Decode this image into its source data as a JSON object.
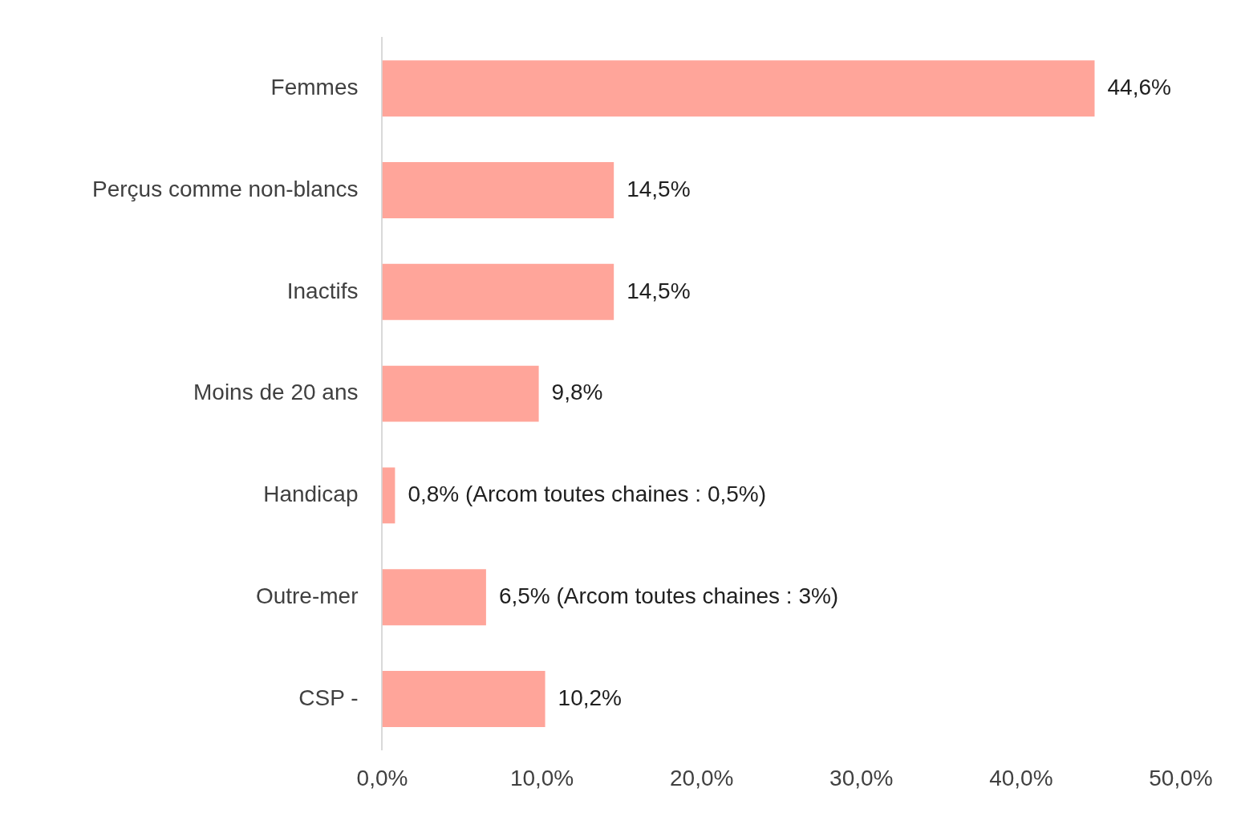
{
  "chart_data": {
    "type": "bar",
    "orientation": "horizontal",
    "categories": [
      "Femmes",
      "Perçus comme non-blancs",
      "Inactifs",
      "Moins de 20 ans",
      "Handicap",
      "Outre-mer",
      "CSP -"
    ],
    "values": [
      44.6,
      14.5,
      14.5,
      9.8,
      0.8,
      6.5,
      10.2
    ],
    "value_labels": [
      "44,6%",
      "14,5%",
      "14,5%",
      "9,8%",
      "0,8% (Arcom toutes chaines : 0,5%)",
      "6,5% (Arcom toutes chaines : 3%)",
      "10,2%"
    ],
    "color": "#ffa59a",
    "xlim": [
      0,
      50
    ],
    "xticks": [
      {
        "value": 0,
        "label": "0,0%"
      },
      {
        "value": 10,
        "label": "10,0%"
      },
      {
        "value": 20,
        "label": "20,0%"
      },
      {
        "value": 30,
        "label": "30,0%"
      },
      {
        "value": 40,
        "label": "40,0%"
      },
      {
        "value": 50,
        "label": "50,0%"
      }
    ]
  }
}
